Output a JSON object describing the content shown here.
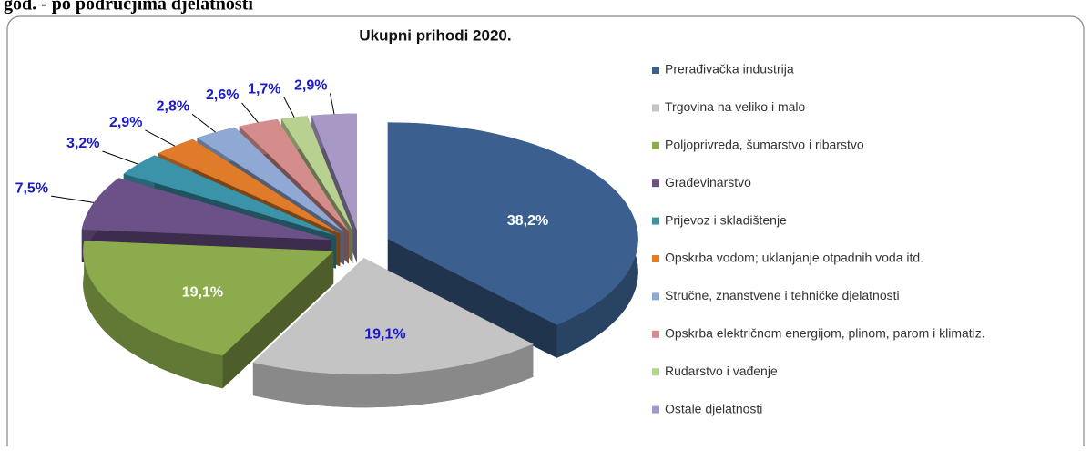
{
  "page_heading": "god. - po područjima djelatnosti",
  "chart_data": {
    "type": "pie",
    "title": "Ukupni prihodi 2020.",
    "categories": [
      "Prerađivačka industrija",
      "Trgovina na veliko i malo",
      "Poljoprivreda, šumarstvo i ribarstvo",
      "Građevinarstvo",
      "Prijevoz i skladištenje",
      "Opskrba vodom; uklanjanje otpadnih voda itd.",
      "Stručne, znanstvene i tehničke djelatnosti",
      "Opskrba električnom energijom, plinom, parom i klimatiz.",
      "Rudarstvo i vađenje",
      "Ostale djelatnosti"
    ],
    "values": [
      38.2,
      19.1,
      19.1,
      7.5,
      3.2,
      2.9,
      2.8,
      2.6,
      1.7,
      2.9
    ],
    "value_labels": [
      "38,2%",
      "19,1%",
      "19,1%",
      "7,5%",
      "3,2%",
      "2,9%",
      "2,8%",
      "2,6%",
      "1,7%",
      "2,9%"
    ],
    "colors": [
      "#3b5f8e",
      "#c4c4c4",
      "#8cab4c",
      "#6c5189",
      "#3a93a8",
      "#e07b2a",
      "#8fa9d4",
      "#d48d8b",
      "#b9d190",
      "#a898c6"
    ],
    "legend": "right"
  }
}
